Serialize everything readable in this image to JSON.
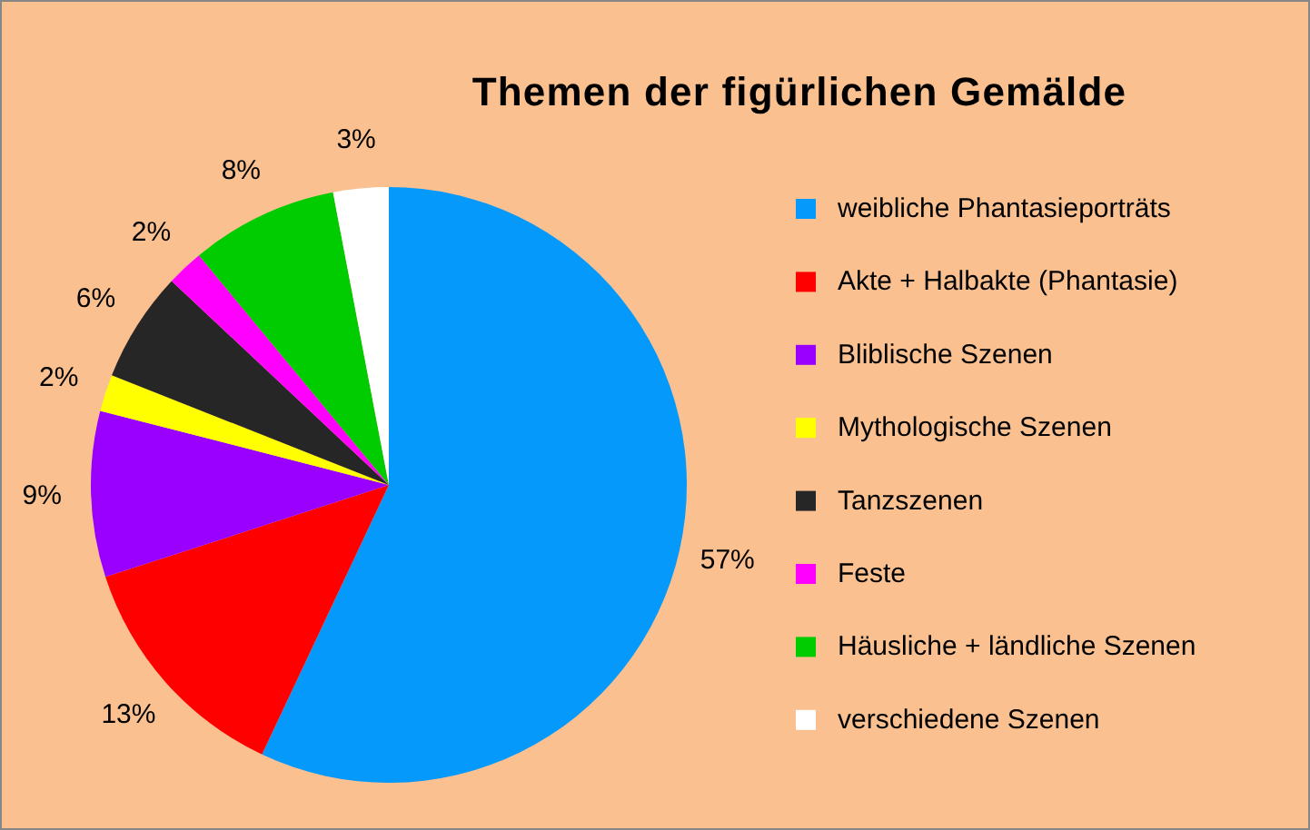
{
  "chart_data": {
    "type": "pie",
    "title": "Themen der figürlichen Gemälde",
    "categories": [
      "weibliche Phantasieporträts",
      "Akte + Halbakte (Phantasie)",
      "Bliblische Szenen",
      "Mythologische Szenen",
      "Tanzszenen",
      "Feste",
      "Häusliche + ländliche Szenen",
      "verschiedene Szenen"
    ],
    "values": [
      57,
      13,
      9,
      2,
      6,
      2,
      8,
      3
    ],
    "value_labels": [
      "57%",
      "13%",
      "9%",
      "2%",
      "6%",
      "2%",
      "8%",
      "3%"
    ],
    "colors": [
      "#0599fb",
      "#ff0000",
      "#9900ff",
      "#ffff00",
      "#262626",
      "#ff00ff",
      "#00cc00",
      "#ffffff"
    ],
    "legend": "right"
  }
}
